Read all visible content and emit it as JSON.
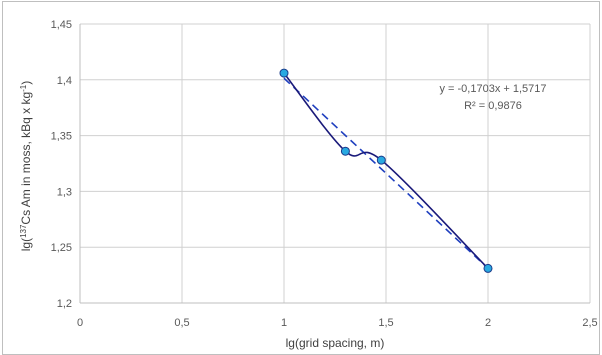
{
  "chart_data": {
    "type": "scatter",
    "title": "",
    "xlabel": "lg(grid spacing, m)",
    "ylabel": {
      "prefix": "lg(",
      "sup1": "137",
      "mid": "Cs Am in moss, kBq x kg",
      "sup2": "-1",
      "suffix": ")"
    },
    "xlim": [
      0,
      2.5
    ],
    "ylim": [
      1.2,
      1.45
    ],
    "x_ticks": [
      0,
      0.5,
      1,
      1.5,
      2,
      2.5
    ],
    "x_tick_labels": [
      "0",
      "0,5",
      "1",
      "1,5",
      "2",
      "2,5"
    ],
    "y_ticks": [
      1.2,
      1.25,
      1.3,
      1.35,
      1.4,
      1.45
    ],
    "y_tick_labels": [
      "1,2",
      "1,25",
      "1,3",
      "1,35",
      "1,4",
      "1,45"
    ],
    "grid": true,
    "series": [
      {
        "x": [
          1.0,
          1.301,
          1.477,
          2.0
        ],
        "y": [
          1.406,
          1.336,
          1.328,
          1.231
        ],
        "marker_color": "#29a9e1",
        "line_color": "#1a1a7a",
        "line_style": "smooth"
      }
    ],
    "trendline": {
      "type": "linear",
      "slope": -0.1703,
      "intercept": 1.5717,
      "x_range": [
        1.0,
        2.0
      ],
      "color": "#1f3fbf",
      "style": "dashed",
      "equation": "y = -0,1703x + 1,5717",
      "r_squared": "R² = 0,9876"
    }
  }
}
